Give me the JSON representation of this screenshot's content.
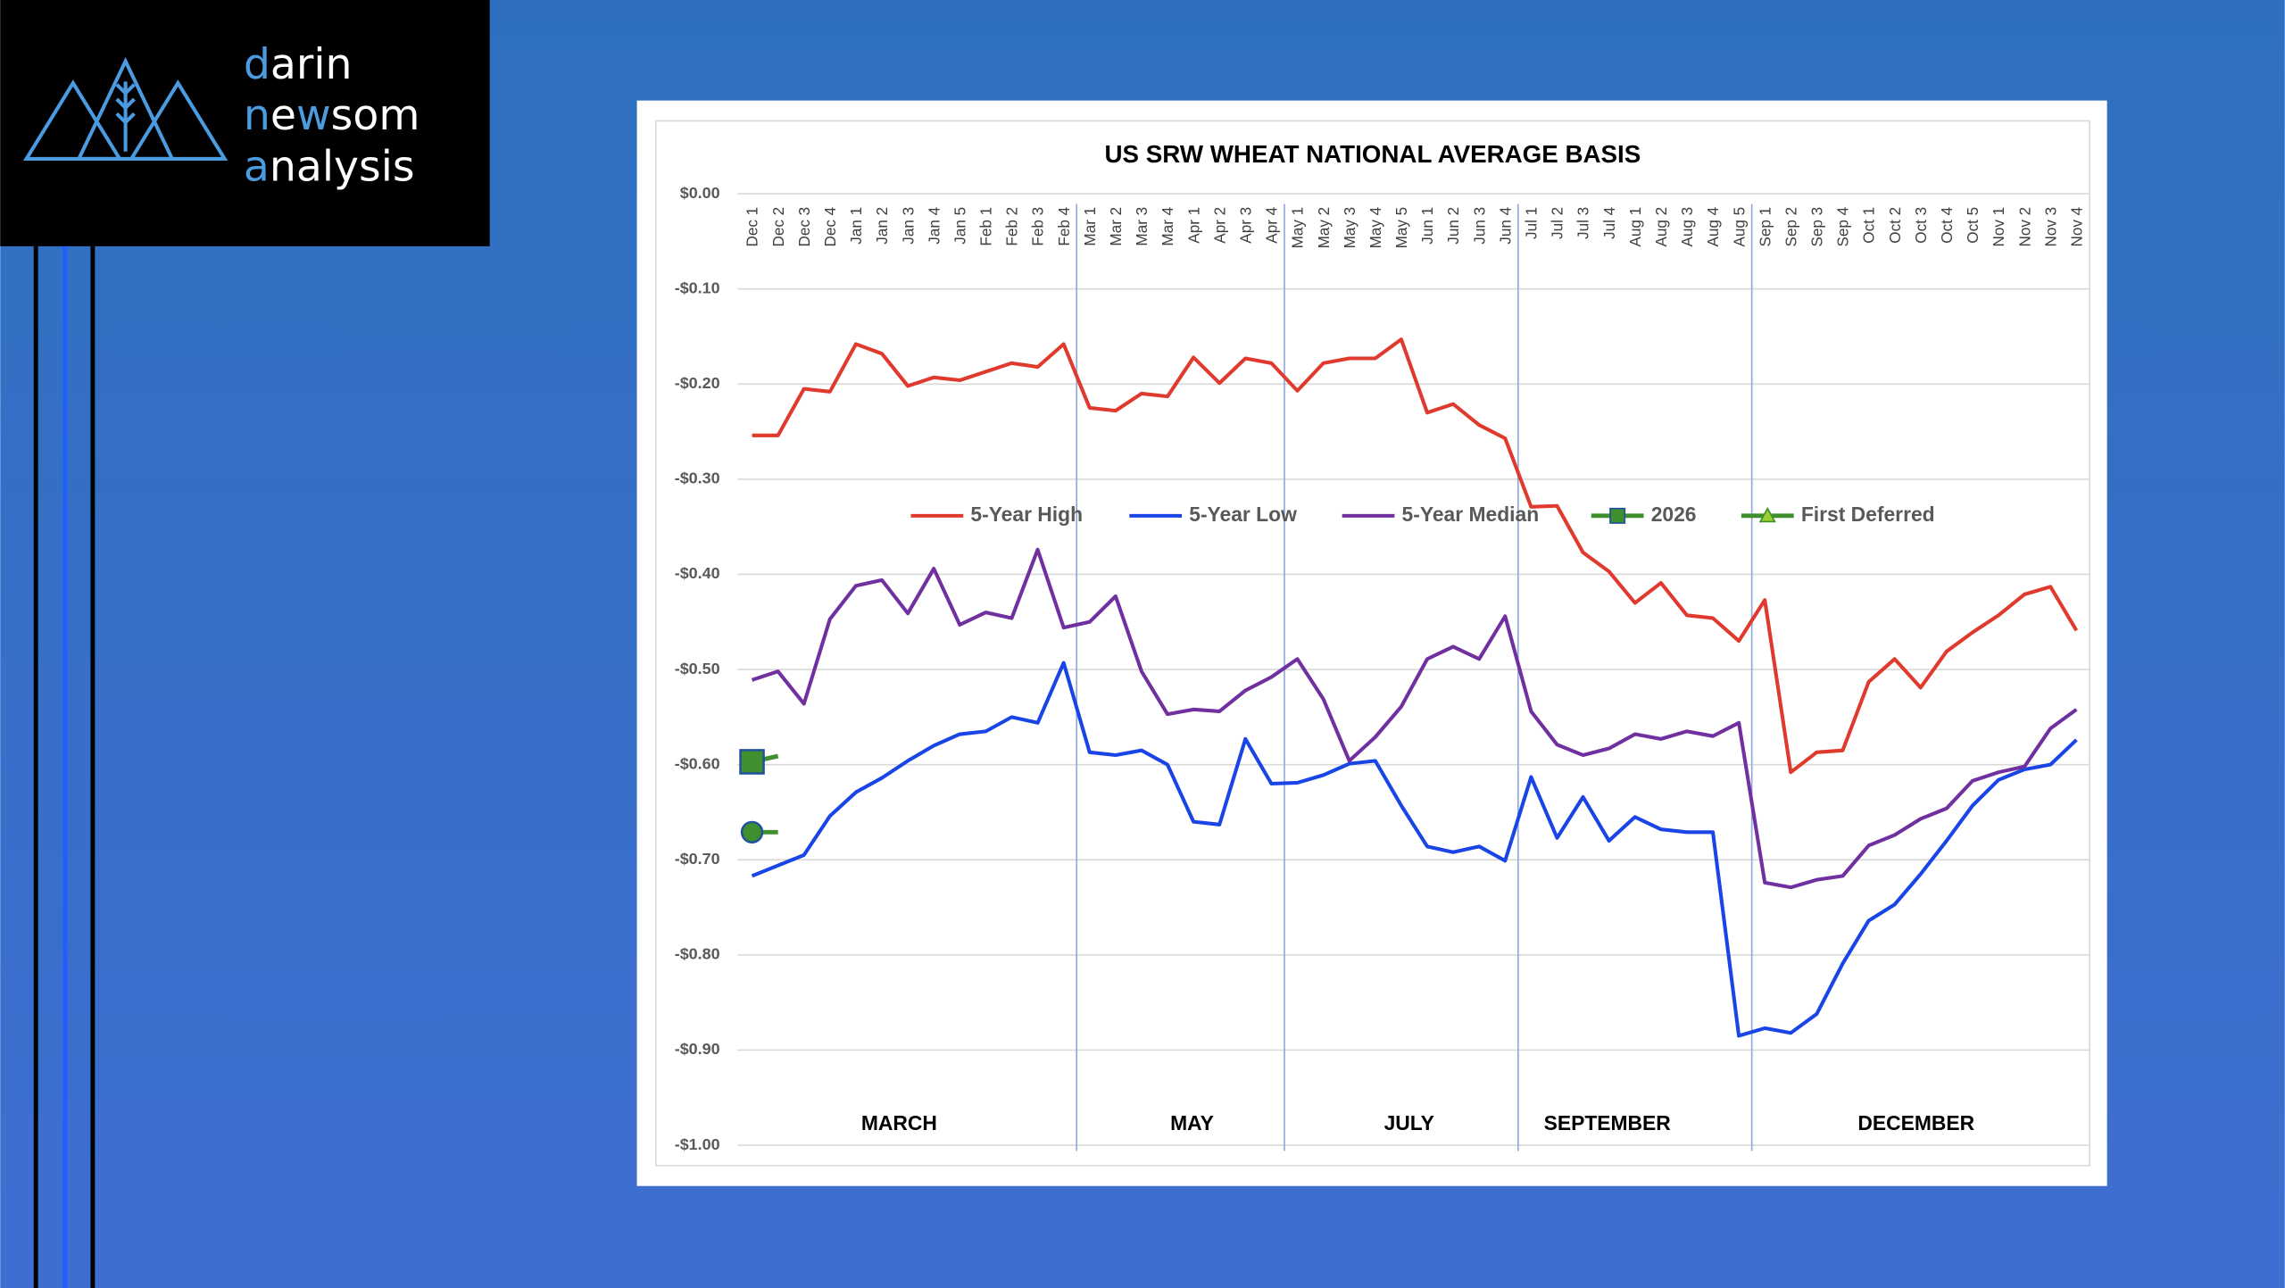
{
  "logo": {
    "lines": [
      "darin",
      "newsom",
      "analysis"
    ]
  },
  "chart_data": {
    "type": "line",
    "title": "US SRW WHEAT NATIONAL AVERAGE BASIS",
    "categories": [
      "Dec 1",
      "Dec 2",
      "Dec 3",
      "Dec 4",
      "Jan 1",
      "Jan 2",
      "Jan 3",
      "Jan 4",
      "Jan 5",
      "Feb 1",
      "Feb 2",
      "Feb 3",
      "Feb 4",
      "Mar 1",
      "Mar 2",
      "Mar 3",
      "Mar 4",
      "Apr 1",
      "Apr 2",
      "Apr 3",
      "Apr 4",
      "May 1",
      "May 2",
      "May 3",
      "May 4",
      "May 5",
      "Jun 1",
      "Jun 2",
      "Jun 3",
      "Jun 4",
      "Jul 1",
      "Jul 2",
      "Jul 3",
      "Jul 4",
      "Aug 1",
      "Aug 2",
      "Aug 3",
      "Aug 4",
      "Aug 5",
      "Sep 1",
      "Sep 2",
      "Sep 3",
      "Sep 4",
      "Oct 1",
      "Oct 2",
      "Oct 3",
      "Oct 4",
      "Oct 5",
      "Nov 1",
      "Nov 2",
      "Nov 3",
      "Nov 4"
    ],
    "series": [
      {
        "name": "5-Year High",
        "color": "#e03a2e",
        "values": [
          -0.254,
          -0.254,
          -0.205,
          -0.208,
          -0.158,
          -0.168,
          -0.202,
          -0.193,
          -0.196,
          -0.187,
          -0.178,
          -0.182,
          -0.158,
          -0.225,
          -0.228,
          -0.21,
          -0.213,
          -0.172,
          -0.199,
          -0.173,
          -0.178,
          -0.207,
          -0.178,
          -0.173,
          -0.173,
          -0.153,
          -0.23,
          -0.221,
          -0.243,
          -0.257,
          -0.329,
          -0.328,
          -0.377,
          -0.397,
          -0.43,
          -0.409,
          -0.443,
          -0.446,
          -0.47,
          -0.427,
          -0.608,
          -0.587,
          -0.585,
          -0.513,
          -0.489,
          -0.519,
          -0.481,
          -0.461,
          -0.443,
          -0.421,
          -0.413,
          -0.459
        ]
      },
      {
        "name": "5-Year Low",
        "color": "#1a45e6",
        "values": [
          -0.717,
          -0.706,
          -0.695,
          -0.654,
          -0.629,
          -0.614,
          -0.596,
          -0.58,
          -0.568,
          -0.565,
          -0.55,
          -0.556,
          -0.493,
          -0.587,
          -0.59,
          -0.585,
          -0.6,
          -0.66,
          -0.663,
          -0.573,
          -0.62,
          -0.619,
          -0.611,
          -0.599,
          -0.596,
          -0.643,
          -0.686,
          -0.692,
          -0.686,
          -0.701,
          -0.613,
          -0.677,
          -0.634,
          -0.68,
          -0.655,
          -0.668,
          -0.671,
          -0.671,
          -0.885,
          -0.877,
          -0.882,
          -0.862,
          -0.809,
          -0.764,
          -0.747,
          -0.715,
          -0.68,
          -0.643,
          -0.616,
          -0.605,
          -0.6,
          -0.574
        ]
      },
      {
        "name": "5-Year Median",
        "color": "#7030a0",
        "values": [
          -0.511,
          -0.502,
          -0.536,
          -0.447,
          -0.412,
          -0.406,
          -0.441,
          -0.394,
          -0.453,
          -0.44,
          -0.446,
          -0.374,
          -0.456,
          -0.45,
          -0.423,
          -0.502,
          -0.547,
          -0.542,
          -0.544,
          -0.522,
          -0.508,
          -0.489,
          -0.531,
          -0.596,
          -0.571,
          -0.539,
          -0.489,
          -0.476,
          -0.489,
          -0.444,
          -0.544,
          -0.579,
          -0.59,
          -0.583,
          -0.568,
          -0.573,
          -0.565,
          -0.57,
          -0.556,
          -0.724,
          -0.729,
          -0.721,
          -0.717,
          -0.685,
          -0.674,
          -0.657,
          -0.646,
          -0.617,
          -0.608,
          -0.602,
          -0.562,
          -0.542
        ]
      },
      {
        "name": "2026",
        "color": "#3f8f2f",
        "marker": "square",
        "values": [
          -0.597,
          -0.591,
          null,
          null,
          null,
          null,
          null,
          null,
          null,
          null,
          null,
          null,
          null,
          null,
          null,
          null,
          null,
          null,
          null,
          null,
          null,
          null,
          null,
          null,
          null,
          null,
          null,
          null,
          null,
          null,
          null,
          null,
          null,
          null,
          null,
          null,
          null,
          null,
          null,
          null,
          null,
          null,
          null,
          null,
          null,
          null,
          null,
          null,
          null,
          null,
          null,
          null
        ]
      },
      {
        "name": "First Deferred",
        "color": "#3f8f2f",
        "marker": "triangle",
        "values": [
          -0.671,
          -0.671,
          null,
          null,
          null,
          null,
          null,
          null,
          null,
          null,
          null,
          null,
          null,
          null,
          null,
          null,
          null,
          null,
          null,
          null,
          null,
          null,
          null,
          null,
          null,
          null,
          null,
          null,
          null,
          null,
          null,
          null,
          null,
          null,
          null,
          null,
          null,
          null,
          null,
          null,
          null,
          null,
          null,
          null,
          null,
          null,
          null,
          null,
          null,
          null,
          null,
          null
        ]
      }
    ],
    "period_labels": [
      "MARCH",
      "MAY",
      "JULY",
      "SEPTEMBER",
      "DECEMBER"
    ],
    "ylim": [
      -1,
      0
    ],
    "yticks": [
      {
        "value": 0,
        "label": "$0.00"
      },
      {
        "value": -0.1,
        "label": "-$0.10"
      },
      {
        "value": -0.2,
        "label": "-$0.20"
      },
      {
        "value": -0.3,
        "label": "-$0.30"
      },
      {
        "value": -0.4,
        "label": "-$0.40"
      },
      {
        "value": -0.5,
        "label": "-$0.50"
      },
      {
        "value": -0.6,
        "label": "-$0.60"
      },
      {
        "value": -0.7,
        "label": "-$0.70"
      },
      {
        "value": -0.8,
        "label": "-$0.80"
      },
      {
        "value": -0.9,
        "label": "-$0.90"
      },
      {
        "value": -1,
        "label": "-$1.00"
      }
    ],
    "grid": true,
    "legend": "top"
  }
}
